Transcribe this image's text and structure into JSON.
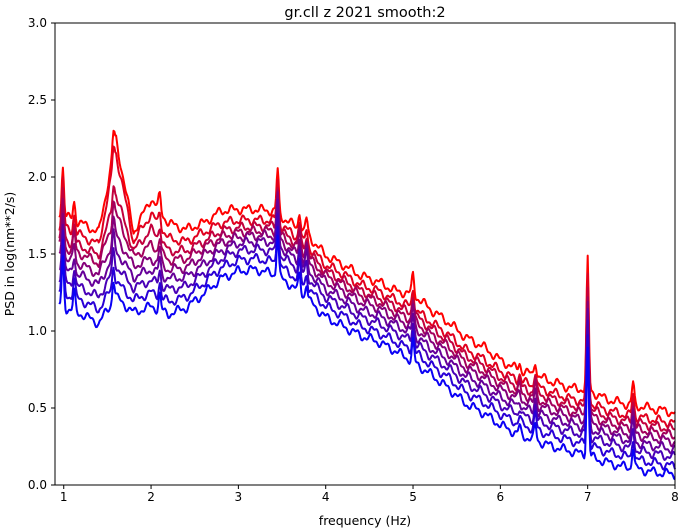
{
  "chart_data": {
    "type": "line",
    "title": "gr.cll z 2021 smooth:2",
    "xlabel": "frequency (Hz)",
    "ylabel": "PSD in log(nm**2/s)",
    "xlim": [
      0.9,
      8.0
    ],
    "ylim": [
      0.0,
      3.0
    ],
    "xticks": [
      "1",
      "2",
      "3",
      "4",
      "5",
      "6",
      "7",
      "8"
    ],
    "yticks": [
      "0.0",
      "0.5",
      "1.0",
      "1.5",
      "2.0",
      "2.5",
      "3.0"
    ],
    "grid": false,
    "legend": "none",
    "x": [
      0.95,
      1.2,
      1.4,
      1.6,
      1.8,
      2.0,
      2.2,
      2.4,
      2.6,
      2.8,
      3.0,
      3.2,
      3.4,
      3.6,
      3.8,
      4.0,
      4.2,
      4.4,
      4.6,
      4.8,
      5.0,
      5.2,
      5.4,
      5.6,
      5.8,
      6.0,
      6.2,
      6.4,
      6.6,
      6.8,
      7.0,
      7.2,
      7.4,
      7.6,
      7.8,
      8.0
    ],
    "series": [
      {
        "color": "#ff0000",
        "values": [
          1.76,
          1.7,
          1.64,
          2.24,
          1.64,
          1.86,
          1.7,
          1.66,
          1.7,
          1.78,
          1.79,
          1.79,
          1.78,
          1.7,
          1.62,
          1.49,
          1.43,
          1.36,
          1.32,
          1.26,
          1.24,
          1.14,
          1.06,
          0.96,
          0.9,
          0.81,
          0.75,
          0.71,
          0.67,
          0.63,
          0.62,
          0.56,
          0.53,
          0.51,
          0.49,
          0.47
        ]
      },
      {
        "color": "#e0001f",
        "values": [
          1.68,
          1.62,
          1.56,
          2.15,
          1.58,
          1.76,
          1.6,
          1.58,
          1.64,
          1.7,
          1.72,
          1.72,
          1.72,
          1.64,
          1.55,
          1.43,
          1.37,
          1.3,
          1.26,
          1.2,
          1.15,
          1.06,
          0.98,
          0.88,
          0.82,
          0.74,
          0.68,
          0.64,
          0.6,
          0.56,
          0.54,
          0.49,
          0.46,
          0.44,
          0.42,
          0.4
        ]
      },
      {
        "color": "#c2003d",
        "values": [
          1.6,
          1.55,
          1.49,
          1.88,
          1.52,
          1.66,
          1.52,
          1.52,
          1.58,
          1.65,
          1.67,
          1.68,
          1.68,
          1.6,
          1.51,
          1.39,
          1.33,
          1.26,
          1.22,
          1.16,
          1.11,
          1.02,
          0.94,
          0.84,
          0.78,
          0.7,
          0.64,
          0.6,
          0.56,
          0.52,
          0.5,
          0.45,
          0.42,
          0.4,
          0.38,
          0.36
        ]
      },
      {
        "color": "#a3005c",
        "values": [
          1.55,
          1.5,
          1.44,
          1.76,
          1.48,
          1.56,
          1.46,
          1.47,
          1.54,
          1.61,
          1.64,
          1.65,
          1.65,
          1.57,
          1.48,
          1.36,
          1.3,
          1.23,
          1.19,
          1.12,
          1.07,
          0.98,
          0.9,
          0.8,
          0.74,
          0.66,
          0.6,
          0.56,
          0.52,
          0.48,
          0.46,
          0.41,
          0.38,
          0.36,
          0.34,
          0.32
        ]
      },
      {
        "color": "#85007a",
        "values": [
          1.48,
          1.43,
          1.37,
          1.62,
          1.42,
          1.47,
          1.4,
          1.41,
          1.49,
          1.57,
          1.61,
          1.62,
          1.62,
          1.53,
          1.44,
          1.32,
          1.26,
          1.19,
          1.15,
          1.08,
          1.03,
          0.94,
          0.86,
          0.76,
          0.7,
          0.62,
          0.56,
          0.52,
          0.48,
          0.44,
          0.42,
          0.37,
          0.34,
          0.32,
          0.3,
          0.28
        ]
      },
      {
        "color": "#660099",
        "values": [
          1.4,
          1.36,
          1.3,
          1.52,
          1.35,
          1.4,
          1.34,
          1.35,
          1.43,
          1.52,
          1.57,
          1.58,
          1.58,
          1.49,
          1.39,
          1.27,
          1.21,
          1.14,
          1.1,
          1.04,
          0.98,
          0.89,
          0.81,
          0.71,
          0.65,
          0.57,
          0.51,
          0.47,
          0.43,
          0.4,
          0.37,
          0.33,
          0.3,
          0.27,
          0.25,
          0.23
        ]
      },
      {
        "color": "#4800b7",
        "values": [
          1.33,
          1.28,
          1.22,
          1.42,
          1.28,
          1.33,
          1.27,
          1.29,
          1.37,
          1.47,
          1.52,
          1.53,
          1.52,
          1.44,
          1.34,
          1.22,
          1.16,
          1.09,
          1.05,
          0.99,
          0.93,
          0.84,
          0.76,
          0.66,
          0.6,
          0.52,
          0.46,
          0.42,
          0.38,
          0.35,
          0.32,
          0.28,
          0.25,
          0.22,
          0.2,
          0.18
        ]
      },
      {
        "color": "#2900d6",
        "values": [
          1.25,
          1.2,
          1.14,
          1.32,
          1.2,
          1.25,
          1.19,
          1.22,
          1.31,
          1.41,
          1.46,
          1.47,
          1.45,
          1.37,
          1.27,
          1.16,
          1.1,
          1.03,
          0.99,
          0.93,
          0.87,
          0.78,
          0.7,
          0.6,
          0.54,
          0.46,
          0.4,
          0.36,
          0.32,
          0.29,
          0.26,
          0.22,
          0.19,
          0.16,
          0.14,
          0.12
        ]
      },
      {
        "color": "#0a00f5",
        "values": [
          1.16,
          1.11,
          1.05,
          1.22,
          1.12,
          1.16,
          1.11,
          1.15,
          1.24,
          1.34,
          1.39,
          1.4,
          1.37,
          1.3,
          1.2,
          1.09,
          1.03,
          0.97,
          0.93,
          0.87,
          0.8,
          0.72,
          0.63,
          0.53,
          0.47,
          0.39,
          0.33,
          0.29,
          0.25,
          0.22,
          0.19,
          0.15,
          0.12,
          0.1,
          0.08,
          0.07
        ]
      }
    ],
    "peaks": [
      {
        "x": 0.99,
        "height": 0.32
      },
      {
        "x": 1.12,
        "height": 0.12
      },
      {
        "x": 1.57,
        "height": 0.14
      },
      {
        "x": 2.1,
        "height": 0.1
      },
      {
        "x": 3.45,
        "height": 0.28
      },
      {
        "x": 3.7,
        "height": 0.12
      },
      {
        "x": 3.78,
        "height": 0.1
      },
      {
        "x": 5.0,
        "height": 0.13
      },
      {
        "x": 6.22,
        "height": 0.05
      },
      {
        "x": 6.4,
        "height": 0.1
      },
      {
        "x": 7.0,
        "height": 0.84
      },
      {
        "x": 7.52,
        "height": 0.14
      }
    ]
  }
}
